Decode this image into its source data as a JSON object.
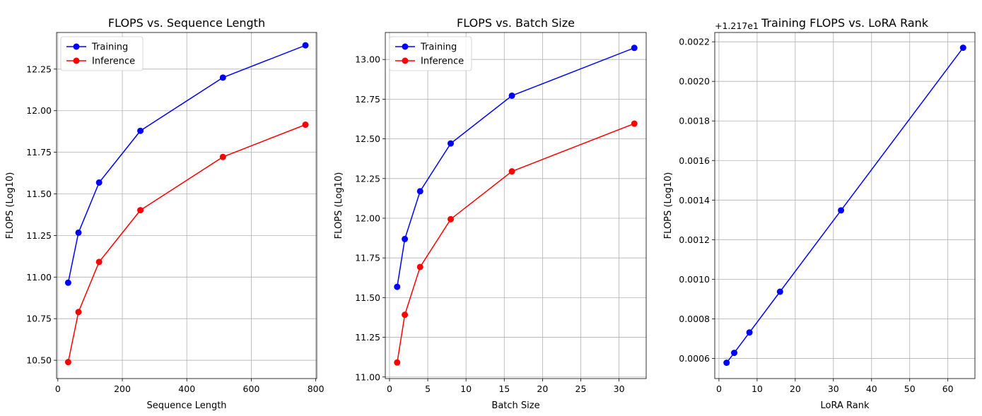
{
  "chart_data": [
    {
      "type": "line",
      "title": "FLOPS vs. Sequence Length",
      "xlabel": "Sequence Length",
      "ylabel": "FLOPS (Log10)",
      "grid": true,
      "legend_position": "top-left",
      "xlim": [
        -4,
        803
      ],
      "ylim": [
        10.39,
        12.47
      ],
      "xticks": [
        0,
        200,
        400,
        600,
        800
      ],
      "yticks": [
        10.5,
        10.75,
        11.0,
        11.25,
        11.5,
        11.75,
        12.0,
        12.25
      ],
      "ytick_labels": [
        "10.50",
        "10.75",
        "11.00",
        "11.25",
        "11.50",
        "11.75",
        "12.00",
        "12.25"
      ],
      "x": [
        32,
        64,
        128,
        256,
        512,
        768
      ],
      "series": [
        {
          "name": "Training",
          "color": "#0000ff",
          "values": [
            10.966,
            11.267,
            11.568,
            11.879,
            12.199,
            12.393
          ]
        },
        {
          "name": "Inference",
          "color": "#ff0000",
          "values": [
            10.489,
            10.79,
            11.091,
            11.402,
            11.722,
            11.916
          ]
        }
      ]
    },
    {
      "type": "line",
      "title": "FLOPS vs. Batch Size",
      "xlabel": "Batch Size",
      "ylabel": "FLOPS (Log10)",
      "grid": true,
      "legend_position": "top-left",
      "xlim": [
        -0.55,
        33.55
      ],
      "ylim": [
        10.99,
        13.17
      ],
      "xticks": [
        0,
        5,
        10,
        15,
        20,
        25,
        30
      ],
      "yticks": [
        11.0,
        11.25,
        11.5,
        11.75,
        12.0,
        12.25,
        12.5,
        12.75,
        13.0
      ],
      "ytick_labels": [
        "11.00",
        "11.25",
        "11.50",
        "11.75",
        "12.00",
        "12.25",
        "12.50",
        "12.75",
        "13.00"
      ],
      "x": [
        1,
        2,
        4,
        8,
        16,
        32
      ],
      "series": [
        {
          "name": "Training",
          "color": "#0000ff",
          "values": [
            11.568,
            11.869,
            12.17,
            12.471,
            12.772,
            13.073
          ]
        },
        {
          "name": "Inference",
          "color": "#ff0000",
          "values": [
            11.091,
            11.392,
            11.693,
            11.994,
            12.295,
            12.596
          ]
        }
      ]
    },
    {
      "type": "line",
      "title": "Training FLOPS vs. LoRA Rank",
      "xlabel": "LoRA Rank",
      "ylabel": "FLOPS (Log10)",
      "offset_text": "+1.217e1",
      "grid": true,
      "xlim": [
        -1.1,
        67.1
      ],
      "ylim": [
        0.000498,
        0.002247
      ],
      "xticks": [
        0,
        10,
        20,
        30,
        40,
        50,
        60
      ],
      "yticks": [
        0.0006,
        0.0008,
        0.001,
        0.0012,
        0.0014,
        0.0016,
        0.0018,
        0.002,
        0.0022
      ],
      "ytick_labels": [
        "0.0006",
        "0.0008",
        "0.0010",
        "0.0012",
        "0.0014",
        "0.0016",
        "0.0018",
        "0.0020",
        "0.0022"
      ],
      "x": [
        2,
        4,
        8,
        16,
        32,
        64
      ],
      "series": [
        {
          "name": "Training",
          "color": "#0000ff",
          "values": [
            0.000578,
            0.000628,
            0.000731,
            0.000937,
            0.001348,
            0.00217
          ]
        }
      ]
    }
  ]
}
